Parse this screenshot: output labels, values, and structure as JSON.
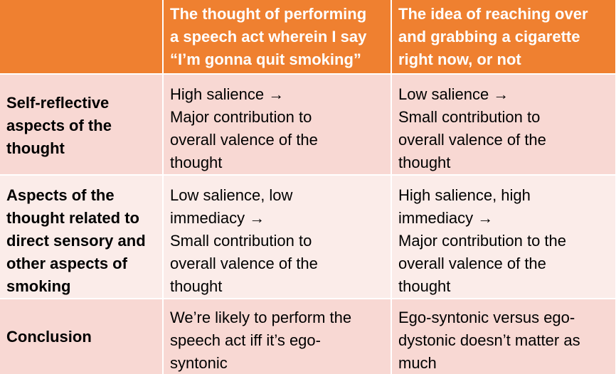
{
  "header": {
    "corner": "",
    "col1": [
      "The thought of performing",
      "a speech act wherein I say",
      "“I’m gonna quit smoking”"
    ],
    "col2": [
      "The idea of reaching over",
      "and grabbing a cigarette",
      "right now, or not"
    ]
  },
  "rows": [
    {
      "label": [
        "Self-reflective",
        "aspects of the",
        "thought"
      ],
      "col1": [
        "High salience →",
        "Major contribution to",
        "overall valence of the",
        "thought"
      ],
      "col2": [
        "Low salience →",
        "Small contribution to",
        "overall valence of the",
        "thought"
      ]
    },
    {
      "label": [
        "Aspects of the",
        "thought related to",
        "direct sensory and",
        "other aspects of",
        "smoking"
      ],
      "col1": [
        "Low salience, low",
        "immediacy →",
        "Small contribution to",
        "overall valence of the",
        "thought"
      ],
      "col2": [
        "High salience, high",
        "immediacy →",
        "Major contribution to the",
        "overall valence of the",
        "thought"
      ]
    },
    {
      "label": [
        "Conclusion"
      ],
      "col1": [
        "We’re likely to perform the",
        "speech act iff it’s ego-",
        "syntonic"
      ],
      "col2": [
        "Ego-syntonic versus ego-",
        "dystonic doesn’t matter as",
        "much"
      ]
    }
  ],
  "colors": {
    "header_bg": "#ef8030",
    "row_dark": "#f8d8d3",
    "row_light": "#fbece9"
  }
}
